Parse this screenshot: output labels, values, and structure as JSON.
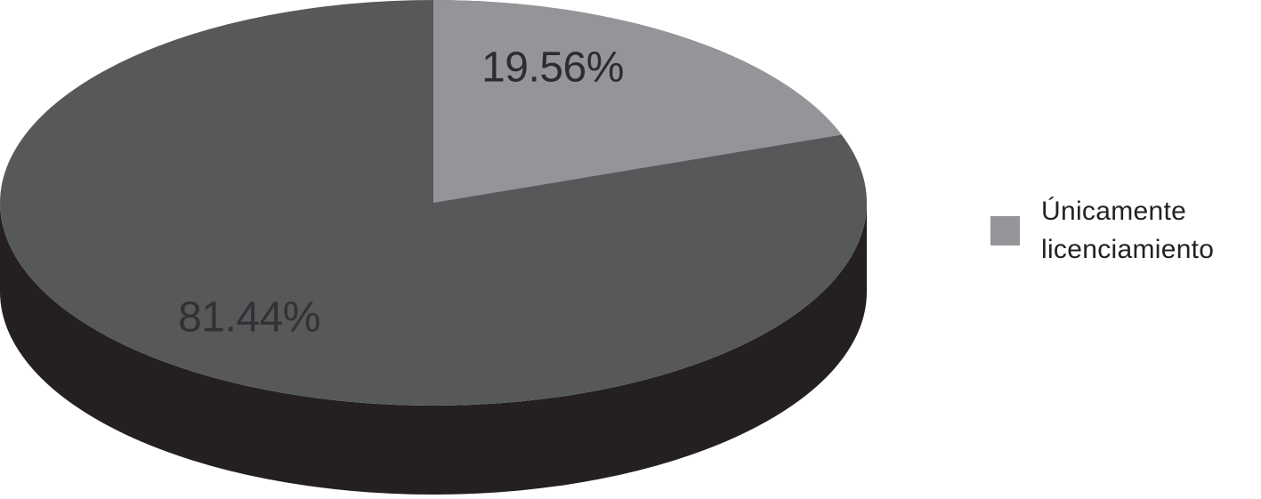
{
  "chart_data": {
    "type": "pie",
    "title": "",
    "effect": "3d",
    "start_angle_deg": 0,
    "direction": "clockwise",
    "unit": "%",
    "slices": [
      {
        "name": "Únicamente licenciamiento",
        "value": 19.56,
        "data_label": "19.56%",
        "color": "#939598"
      },
      {
        "name": "",
        "value": 81.44,
        "data_label": "81.44%",
        "color": "#57585a"
      }
    ],
    "side_color": "#242021",
    "background_color": "#ffffff",
    "legend": {
      "position": "right",
      "entries": [
        {
          "label": "Únicamente licenciamiento",
          "label_lines": [
            "Únicamente",
            "licenciamiento"
          ],
          "swatch_color": "#939598"
        }
      ]
    }
  }
}
